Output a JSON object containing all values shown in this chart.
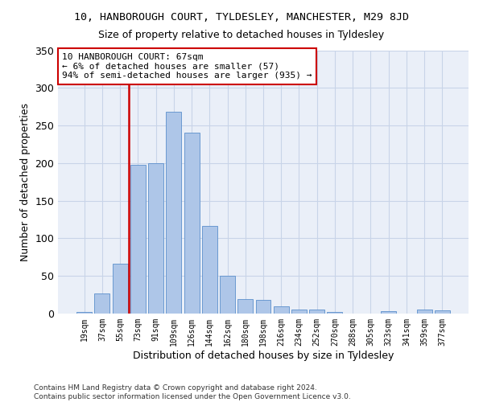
{
  "title": "10, HANBOROUGH COURT, TYLDESLEY, MANCHESTER, M29 8JD",
  "subtitle": "Size of property relative to detached houses in Tyldesley",
  "xlabel": "Distribution of detached houses by size in Tyldesley",
  "ylabel": "Number of detached properties",
  "footer_line1": "Contains HM Land Registry data © Crown copyright and database right 2024.",
  "footer_line2": "Contains public sector information licensed under the Open Government Licence v3.0.",
  "bin_labels": [
    "19sqm",
    "37sqm",
    "55sqm",
    "73sqm",
    "91sqm",
    "109sqm",
    "126sqm",
    "144sqm",
    "162sqm",
    "180sqm",
    "198sqm",
    "216sqm",
    "234sqm",
    "252sqm",
    "270sqm",
    "288sqm",
    "305sqm",
    "323sqm",
    "341sqm",
    "359sqm",
    "377sqm"
  ],
  "bar_heights": [
    2,
    27,
    66,
    198,
    200,
    268,
    240,
    117,
    50,
    19,
    18,
    10,
    5,
    5,
    2,
    0,
    0,
    3,
    0,
    5,
    4
  ],
  "bar_color": "#aec6e8",
  "bar_edge_color": "#5b8fcc",
  "vline_color": "#cc0000",
  "vline_pos": 2.5,
  "annotation_line1": "10 HANBOROUGH COURT: 67sqm",
  "annotation_line2": "← 6% of detached houses are smaller (57)",
  "annotation_line3": "94% of semi-detached houses are larger (935) →",
  "annotation_box_color": "#ffffff",
  "annotation_box_edge": "#cc0000",
  "ylim": [
    0,
    350
  ],
  "yticks": [
    0,
    50,
    100,
    150,
    200,
    250,
    300,
    350
  ],
  "grid_color": "#c8d4e8",
  "bg_color": "#eaeff8"
}
